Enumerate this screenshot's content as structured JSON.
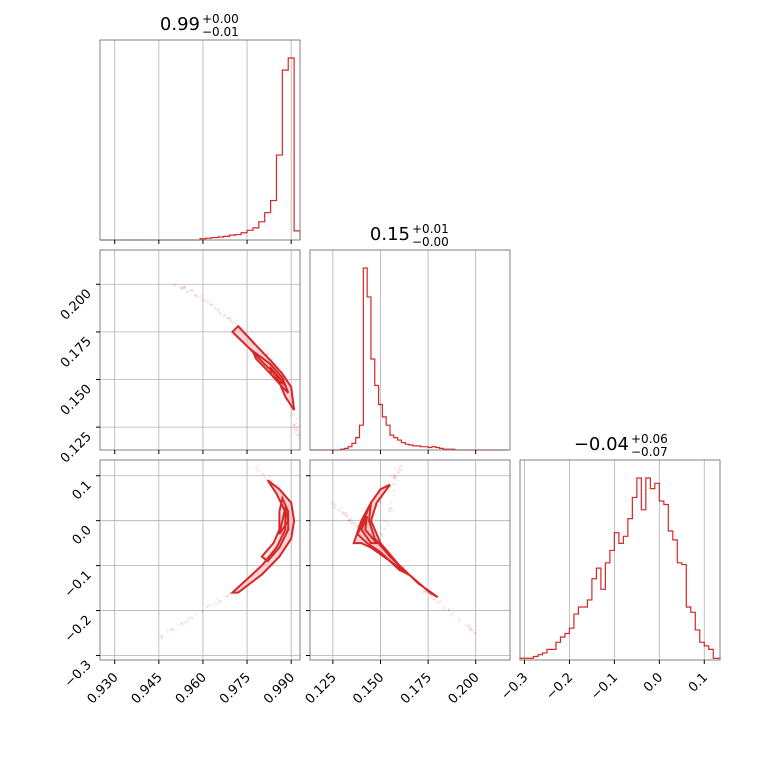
{
  "colors": {
    "accent": "#d62728",
    "fill": "#f4b3b7",
    "grid": "#b0b0b0",
    "frame": "#808080"
  },
  "chart_data": {
    "type": "corner",
    "parameters": [
      {
        "ticks": [
          0.93,
          0.945,
          0.96,
          0.975,
          0.99
        ],
        "tick_labels": [
          "0.930",
          "0.945",
          "0.960",
          "0.975",
          "0.990"
        ],
        "range": [
          0.925,
          0.993
        ]
      },
      {
        "ticks": [
          0.125,
          0.15,
          0.175,
          0.2
        ],
        "tick_labels": [
          "0.125",
          "0.150",
          "0.175",
          "0.200"
        ],
        "range": [
          0.113,
          0.218
        ]
      },
      {
        "ticks": [
          -0.3,
          -0.2,
          -0.1,
          0.0,
          0.1
        ],
        "tick_labels": [
          "−0.3",
          "−0.2",
          "−0.1",
          "0.0",
          "0.1"
        ],
        "range": [
          -0.31,
          0.135
        ]
      }
    ],
    "titles": [
      {
        "main": "0.99",
        "plus": "+0.00",
        "minus": "−0.01"
      },
      {
        "main": "0.15",
        "plus": "+0.01",
        "minus": "−0.00"
      },
      {
        "main": "−0.04",
        "plus": "+0.06",
        "minus": "−0.07"
      }
    ],
    "histograms": [
      {
        "edges": [
          0.925,
          0.927,
          0.929,
          0.931,
          0.933,
          0.935,
          0.937,
          0.939,
          0.941,
          0.943,
          0.945,
          0.947,
          0.949,
          0.951,
          0.953,
          0.955,
          0.957,
          0.959,
          0.961,
          0.963,
          0.965,
          0.967,
          0.969,
          0.971,
          0.973,
          0.975,
          0.977,
          0.979,
          0.981,
          0.983,
          0.985,
          0.987,
          0.989,
          0.991,
          0.993
        ],
        "counts": [
          0,
          0,
          0,
          0,
          0,
          0,
          0,
          0,
          0,
          0,
          0,
          0,
          0,
          0,
          0,
          0,
          0,
          2,
          3,
          4,
          5,
          6,
          8,
          9,
          12,
          16,
          20,
          30,
          45,
          65,
          140,
          280,
          300,
          15
        ]
      },
      {
        "edges": [
          0.113,
          0.115,
          0.117,
          0.119,
          0.121,
          0.123,
          0.125,
          0.127,
          0.129,
          0.131,
          0.133,
          0.135,
          0.137,
          0.139,
          0.141,
          0.143,
          0.145,
          0.147,
          0.149,
          0.151,
          0.153,
          0.155,
          0.157,
          0.159,
          0.161,
          0.163,
          0.165,
          0.167,
          0.169,
          0.171,
          0.173,
          0.175,
          0.177,
          0.179,
          0.181,
          0.183,
          0.185,
          0.187,
          0.189,
          0.191,
          0.193,
          0.195,
          0.197,
          0.199,
          0.201,
          0.203,
          0.205,
          0.207,
          0.209,
          0.211,
          0.213,
          0.215,
          0.217
        ],
        "counts": [
          0,
          0,
          0,
          0,
          0,
          0,
          0,
          0,
          1,
          2,
          4,
          8,
          15,
          30,
          220,
          185,
          110,
          78,
          55,
          40,
          30,
          18,
          15,
          12,
          9,
          7,
          6,
          5,
          5,
          4,
          4,
          3,
          4,
          3,
          2,
          1,
          1,
          1,
          0,
          0,
          0,
          0,
          0,
          0,
          0,
          0,
          0,
          0,
          0,
          0,
          0,
          0
        ]
      },
      {
        "edges": [
          -0.31,
          -0.3,
          -0.29,
          -0.28,
          -0.27,
          -0.26,
          -0.25,
          -0.24,
          -0.23,
          -0.22,
          -0.21,
          -0.2,
          -0.19,
          -0.18,
          -0.17,
          -0.16,
          -0.15,
          -0.14,
          -0.13,
          -0.12,
          -0.11,
          -0.1,
          -0.09,
          -0.08,
          -0.07,
          -0.06,
          -0.05,
          -0.04,
          -0.03,
          -0.02,
          -0.01,
          0.0,
          0.01,
          0.02,
          0.03,
          0.04,
          0.05,
          0.06,
          0.07,
          0.08,
          0.09,
          0.1,
          0.11,
          0.12,
          0.13,
          0.135
        ],
        "counts": [
          1,
          1,
          1,
          2,
          3,
          4,
          6,
          6,
          10,
          13,
          15,
          18,
          26,
          30,
          30,
          34,
          46,
          52,
          40,
          55,
          62,
          72,
          66,
          70,
          80,
          92,
          103,
          85,
          103,
          97,
          100,
          90,
          88,
          73,
          68,
          55,
          54,
          30,
          27,
          17,
          10,
          8,
          6,
          1,
          1
        ]
      }
    ],
    "panels": [
      {
        "row": 1,
        "col": 0,
        "contours": [
          [
            [
              0.972,
              0.178
            ],
            [
              0.978,
              0.168
            ],
            [
              0.983,
              0.16
            ],
            [
              0.987,
              0.153
            ],
            [
              0.99,
              0.146
            ],
            [
              0.991,
              0.134
            ],
            [
              0.988,
              0.141
            ],
            [
              0.985,
              0.152
            ],
            [
              0.981,
              0.158
            ],
            [
              0.976,
              0.166
            ],
            [
              0.97,
              0.175
            ]
          ],
          [
            [
              0.977,
              0.165
            ],
            [
              0.983,
              0.158
            ],
            [
              0.987,
              0.151
            ],
            [
              0.989,
              0.143
            ],
            [
              0.987,
              0.146
            ],
            [
              0.983,
              0.153
            ],
            [
              0.978,
              0.161
            ]
          ],
          [
            [
              0.983,
              0.156
            ],
            [
              0.986,
              0.151
            ],
            [
              0.988,
              0.147
            ],
            [
              0.986,
              0.149
            ],
            [
              0.983,
              0.153
            ]
          ]
        ],
        "scatter_path": [
          [
            0.95,
            0.2
          ],
          [
            0.96,
            0.193
          ],
          [
            0.97,
            0.18
          ],
          [
            0.98,
            0.165
          ],
          [
            0.987,
            0.152
          ],
          [
            0.991,
            0.135
          ],
          [
            0.992,
            0.12
          ]
        ]
      },
      {
        "row": 2,
        "col": 0,
        "contours": [
          [
            [
              0.972,
              -0.16
            ],
            [
              0.98,
              -0.12
            ],
            [
              0.986,
              -0.08
            ],
            [
              0.99,
              -0.04
            ],
            [
              0.991,
              0.0
            ],
            [
              0.99,
              0.04
            ],
            [
              0.986,
              0.07
            ],
            [
              0.982,
              0.09
            ],
            [
              0.985,
              0.06
            ],
            [
              0.988,
              0.02
            ],
            [
              0.988,
              -0.02
            ],
            [
              0.985,
              -0.06
            ],
            [
              0.98,
              -0.1
            ],
            [
              0.975,
              -0.13
            ],
            [
              0.97,
              -0.16
            ]
          ],
          [
            [
              0.982,
              -0.09
            ],
            [
              0.986,
              -0.06
            ],
            [
              0.989,
              -0.02
            ],
            [
              0.989,
              0.02
            ],
            [
              0.987,
              0.05
            ],
            [
              0.986,
              0.02
            ],
            [
              0.986,
              -0.02
            ],
            [
              0.984,
              -0.05
            ],
            [
              0.98,
              -0.08
            ]
          ],
          [
            [
              0.986,
              -0.03
            ],
            [
              0.989,
              0.0
            ],
            [
              0.988,
              0.03
            ],
            [
              0.987,
              0.0
            ]
          ]
        ],
        "scatter_path": [
          [
            0.945,
            -0.26
          ],
          [
            0.96,
            -0.2
          ],
          [
            0.975,
            -0.14
          ],
          [
            0.985,
            -0.06
          ],
          [
            0.99,
            0.0
          ],
          [
            0.987,
            0.06
          ],
          [
            0.978,
            0.12
          ]
        ]
      },
      {
        "row": 2,
        "col": 1,
        "contours": [
          [
            [
              0.136,
              -0.05
            ],
            [
              0.14,
              0.0
            ],
            [
              0.145,
              0.04
            ],
            [
              0.15,
              0.07
            ],
            [
              0.155,
              0.08
            ],
            [
              0.148,
              0.04
            ],
            [
              0.145,
              0.0
            ],
            [
              0.15,
              -0.05
            ],
            [
              0.16,
              -0.1
            ],
            [
              0.17,
              -0.14
            ],
            [
              0.18,
              -0.17
            ],
            [
              0.176,
              -0.16
            ],
            [
              0.165,
              -0.12
            ],
            [
              0.155,
              -0.09
            ],
            [
              0.145,
              -0.06
            ],
            [
              0.14,
              -0.05
            ]
          ],
          [
            [
              0.138,
              -0.03
            ],
            [
              0.142,
              0.01
            ],
            [
              0.145,
              0.04
            ],
            [
              0.144,
              0.0
            ],
            [
              0.147,
              -0.04
            ],
            [
              0.155,
              -0.08
            ],
            [
              0.165,
              -0.12
            ],
            [
              0.16,
              -0.11
            ],
            [
              0.15,
              -0.07
            ],
            [
              0.143,
              -0.05
            ]
          ],
          [
            [
              0.14,
              -0.02
            ],
            [
              0.143,
              0.01
            ],
            [
              0.142,
              -0.02
            ],
            [
              0.148,
              -0.05
            ],
            [
              0.145,
              -0.05
            ]
          ]
        ],
        "scatter_path": [
          [
            0.125,
            0.04
          ],
          [
            0.135,
            0.0
          ],
          [
            0.142,
            -0.02
          ],
          [
            0.15,
            0.05
          ],
          [
            0.16,
            0.12
          ],
          [
            0.15,
            -0.06
          ],
          [
            0.165,
            -0.12
          ],
          [
            0.18,
            -0.18
          ],
          [
            0.2,
            -0.25
          ]
        ]
      }
    ]
  }
}
